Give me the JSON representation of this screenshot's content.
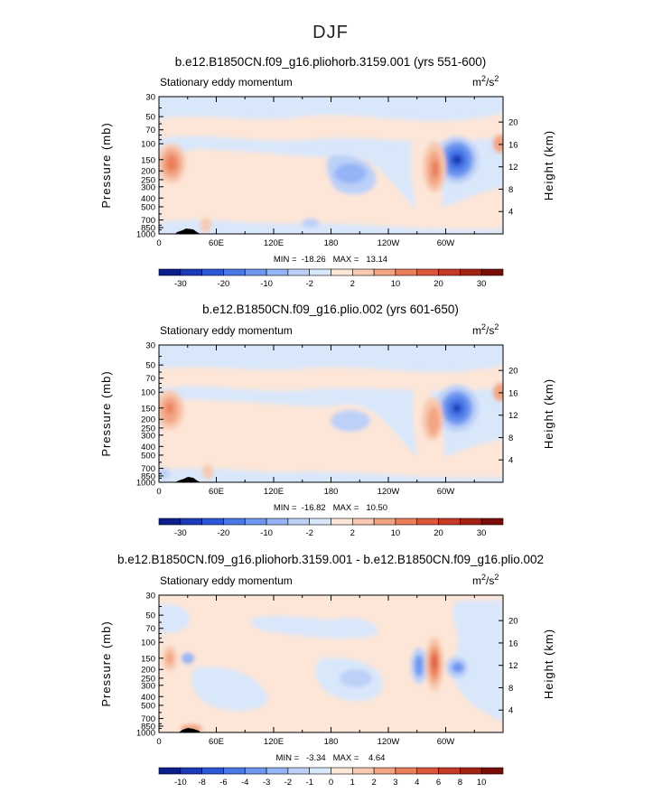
{
  "figure": {
    "title": "DJF"
  },
  "chart_data": [
    {
      "type": "contour",
      "title": "b.e12.B1850CN.f09_g16.pliohorb.3159.001 (yrs 551-600)",
      "subtitle_left": "Stationary eddy momentum",
      "units": "m²/s²",
      "units_base": "m",
      "units_mid": "/s",
      "units_sup": "2",
      "ylabel": "Pressure (mb)",
      "ylabel_right": "Height (km)",
      "x_ticks": [
        "0",
        "60E",
        "120E",
        "180",
        "120W",
        "60W"
      ],
      "x_tick_values": [
        0,
        60,
        120,
        180,
        240,
        300
      ],
      "xlim": [
        0,
        360
      ],
      "y_ticks": [
        "30",
        "50",
        "70",
        "100",
        "150",
        "200",
        "250",
        "300",
        "400",
        "500",
        "700",
        "850",
        "1000"
      ],
      "y_tick_values": [
        30,
        50,
        70,
        100,
        150,
        200,
        250,
        300,
        400,
        500,
        700,
        850,
        1000
      ],
      "ylim": [
        1000,
        30
      ],
      "y_scale": "log",
      "height_ticks": [
        "4",
        "8",
        "12",
        "16",
        "20"
      ],
      "height_tick_values": [
        4,
        8,
        12,
        16,
        20
      ],
      "min_label": "MIN = -18.26",
      "max_label": "MAX = 13.14",
      "minmax_text": "MIN =  -18.26   MAX =   13.14",
      "colorbar_labels": [
        "-30",
        "-20",
        "-10",
        "-2",
        "2",
        "10",
        "20",
        "30"
      ],
      "colorbar_colors": [
        "#0a1e8c",
        "#1b3bb8",
        "#2b58d6",
        "#4a78e8",
        "#6e97f0",
        "#95b4f5",
        "#bcd0f8",
        "#d9e7fb",
        "#fde6d8",
        "#f8c9b0",
        "#f2a584",
        "#ea7e5b",
        "#dc573a",
        "#c63a25",
        "#a42214",
        "#7a0c08"
      ],
      "features": [
        {
          "lon": 300,
          "p": 150,
          "value": -18.26
        },
        {
          "lon": 10,
          "p": 170,
          "value": 13.14
        },
        {
          "lon": 268,
          "p": 190,
          "value": 10
        },
        {
          "lon": 186,
          "p": 210,
          "value": -5
        }
      ]
    },
    {
      "type": "contour",
      "title": "b.e12.B1850CN.f09_g16.plio.002 (yrs 601-650)",
      "subtitle_left": "Stationary eddy momentum",
      "units": "m²/s²",
      "units_base": "m",
      "units_mid": "/s",
      "units_sup": "2",
      "ylabel": "Pressure (mb)",
      "ylabel_right": "Height (km)",
      "x_ticks": [
        "0",
        "60E",
        "120E",
        "180",
        "120W",
        "60W"
      ],
      "x_tick_values": [
        0,
        60,
        120,
        180,
        240,
        300
      ],
      "xlim": [
        0,
        360
      ],
      "y_ticks": [
        "30",
        "50",
        "70",
        "100",
        "150",
        "200",
        "250",
        "300",
        "400",
        "500",
        "700",
        "850",
        "1000"
      ],
      "y_tick_values": [
        30,
        50,
        70,
        100,
        150,
        200,
        250,
        300,
        400,
        500,
        700,
        850,
        1000
      ],
      "ylim": [
        1000,
        30
      ],
      "y_scale": "log",
      "height_ticks": [
        "4",
        "8",
        "12",
        "16",
        "20"
      ],
      "height_tick_values": [
        4,
        8,
        12,
        16,
        20
      ],
      "min_label": "MIN = -16.82",
      "max_label": "MAX = 10.50",
      "minmax_text": "MIN =  -16.82   MAX =   10.50",
      "colorbar_labels": [
        "-30",
        "-20",
        "-10",
        "-2",
        "2",
        "10",
        "20",
        "30"
      ],
      "colorbar_colors": [
        "#0a1e8c",
        "#1b3bb8",
        "#2b58d6",
        "#4a78e8",
        "#6e97f0",
        "#95b4f5",
        "#bcd0f8",
        "#d9e7fb",
        "#fde6d8",
        "#f8c9b0",
        "#f2a584",
        "#ea7e5b",
        "#dc573a",
        "#c63a25",
        "#a42214",
        "#7a0c08"
      ],
      "features": [
        {
          "lon": 300,
          "p": 150,
          "value": -16.82
        },
        {
          "lon": 10,
          "p": 160,
          "value": 10.5
        },
        {
          "lon": 270,
          "p": 200,
          "value": 8
        },
        {
          "lon": 186,
          "p": 200,
          "value": -4
        }
      ]
    },
    {
      "type": "contour",
      "title": "b.e12.B1850CN.f09_g16.pliohorb.3159.001 - b.e12.B1850CN.f09_g16.plio.002",
      "subtitle_left": "Stationary eddy momentum",
      "units": "m²/s²",
      "units_base": "m",
      "units_mid": "/s",
      "units_sup": "2",
      "ylabel": "Pressure (mb)",
      "ylabel_right": "Height (km)",
      "x_ticks": [
        "0",
        "60E",
        "120E",
        "180",
        "120W",
        "60W"
      ],
      "x_tick_values": [
        0,
        60,
        120,
        180,
        240,
        300
      ],
      "xlim": [
        0,
        360
      ],
      "y_ticks": [
        "30",
        "50",
        "70",
        "100",
        "150",
        "200",
        "250",
        "300",
        "400",
        "500",
        "700",
        "850",
        "1000"
      ],
      "y_tick_values": [
        30,
        50,
        70,
        100,
        150,
        200,
        250,
        300,
        400,
        500,
        700,
        850,
        1000
      ],
      "ylim": [
        1000,
        30
      ],
      "y_scale": "log",
      "height_ticks": [
        "4",
        "8",
        "12",
        "16",
        "20"
      ],
      "height_tick_values": [
        4,
        8,
        12,
        16,
        20
      ],
      "min_label": "MIN = -3.34",
      "max_label": "MAX = 4.64",
      "minmax_text": "MIN =   -3.34   MAX =    4.64",
      "colorbar_labels": [
        "-10",
        "-8",
        "-6",
        "-4",
        "-3",
        "-2",
        "-1",
        "0",
        "1",
        "2",
        "3",
        "4",
        "6",
        "8",
        "10"
      ],
      "colorbar_colors": [
        "#0a1e8c",
        "#1b3bb8",
        "#2b58d6",
        "#4a78e8",
        "#6e97f0",
        "#95b4f5",
        "#bcd0f8",
        "#d9e7fb",
        "#fde6d8",
        "#f8c9b0",
        "#f2a584",
        "#ea7e5b",
        "#dc573a",
        "#c63a25",
        "#a42214",
        "#7a0c08"
      ],
      "features": [
        {
          "lon": 268,
          "p": 200,
          "value": 4.64
        },
        {
          "lon": 300,
          "p": 200,
          "value": -2
        },
        {
          "lon": 248,
          "p": 200,
          "value": -3.34
        },
        {
          "lon": 10,
          "p": 180,
          "value": 2
        }
      ]
    }
  ]
}
